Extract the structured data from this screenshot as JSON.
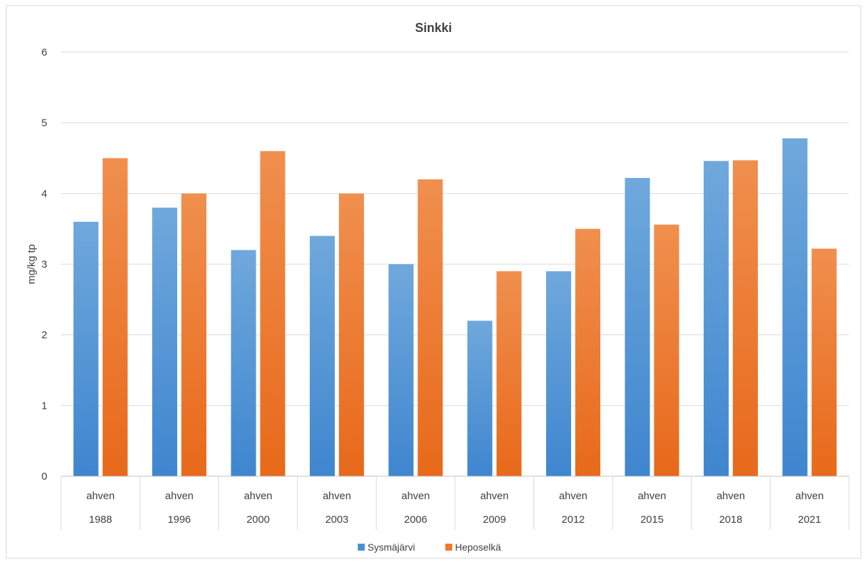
{
  "chart_data": {
    "type": "bar",
    "title": "Sinkki",
    "ylabel": "mg/kg tp",
    "xlabel": "",
    "ylim": [
      0,
      6
    ],
    "yticks": [
      "0",
      "1",
      "2",
      "3",
      "4",
      "5",
      "6"
    ],
    "grid": true,
    "legend_position": "bottom",
    "categories": [
      "1988",
      "1996",
      "2000",
      "2003",
      "2006",
      "2009",
      "2012",
      "2015",
      "2018",
      "2021"
    ],
    "subcategory": [
      "ahven",
      "ahven",
      "ahven",
      "ahven",
      "ahven",
      "ahven",
      "ahven",
      "ahven",
      "ahven",
      "ahven"
    ],
    "series": [
      {
        "name": "Sysmäjärvi",
        "color": "#4A90D9",
        "values": [
          3.6,
          3.8,
          3.2,
          3.4,
          3.0,
          2.2,
          2.9,
          4.22,
          4.46,
          4.78
        ]
      },
      {
        "name": "Heposelkä",
        "color": "#F07A2A",
        "values": [
          4.5,
          4.0,
          4.6,
          4.0,
          4.2,
          2.9,
          3.5,
          3.56,
          4.47,
          3.22
        ]
      }
    ]
  }
}
